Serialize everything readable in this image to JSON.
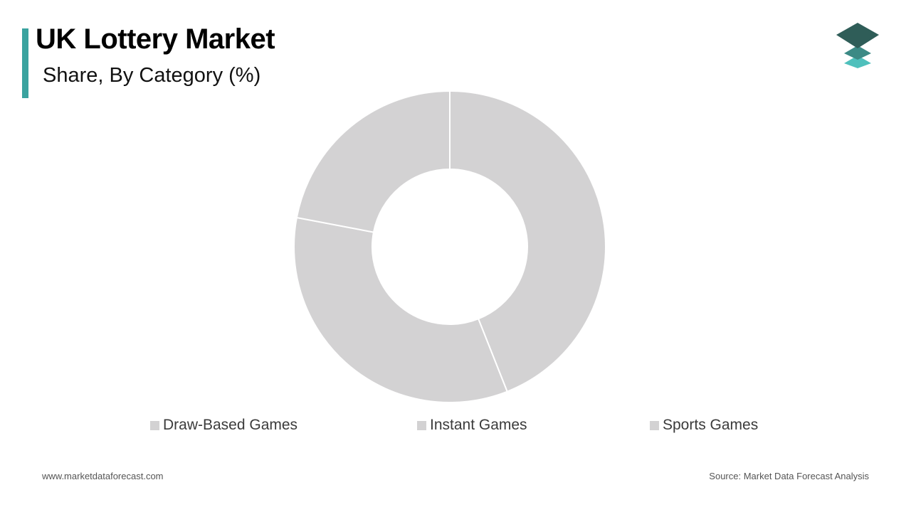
{
  "header": {
    "title": "UK Lottery Market",
    "subtitle": "Share, By Category (%)",
    "accent_color": "#3aa39f"
  },
  "logo": {
    "icon": "stacked-layers-logo-icon"
  },
  "chart_data": {
    "type": "pie",
    "variant": "donut",
    "categories": [
      "Draw-Based Games",
      "Instant Games",
      "Sports Games"
    ],
    "values": [
      44,
      34,
      22
    ],
    "colors": [
      "#d3d2d3",
      "#d3d2d3",
      "#d3d2d3"
    ],
    "legend_position": "bottom"
  },
  "footer": {
    "website": "www.marketdataforecast.com",
    "source": "Source: Market Data Forecast Analysis"
  }
}
